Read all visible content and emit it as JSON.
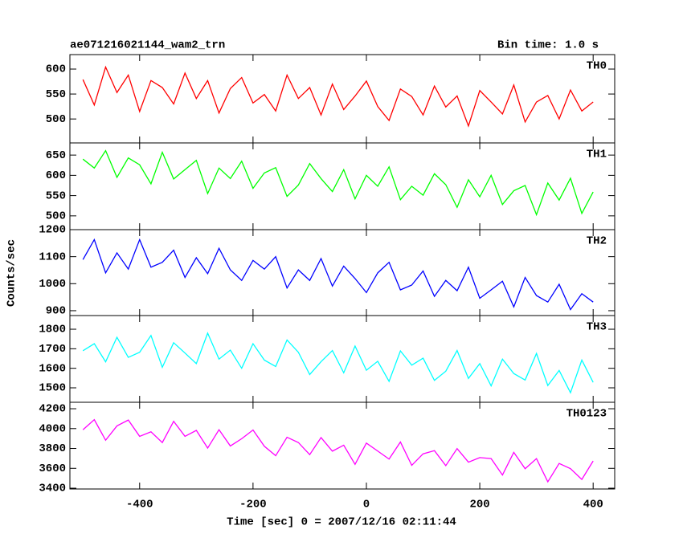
{
  "chart_data": {
    "type": "line",
    "title": "ae071216021144_wam2_trn",
    "subtitle": "Bin time: 1.0 s",
    "x_label": "Time [sec] 0 = 2007/12/16 02:11:44",
    "y_label": "Counts/sec",
    "xlim": [
      -523,
      438
    ],
    "xticks": [
      -400,
      -200,
      0,
      200,
      400
    ],
    "x": [
      -500,
      -480,
      -460,
      -440,
      -420,
      -400,
      -380,
      -360,
      -340,
      -320,
      -300,
      -280,
      -260,
      -240,
      -220,
      -200,
      -180,
      -160,
      -140,
      -120,
      -100,
      -80,
      -60,
      -40,
      -20,
      0,
      20,
      40,
      60,
      80,
      100,
      120,
      140,
      160,
      180,
      200,
      220,
      240,
      260,
      280,
      300,
      320,
      340,
      360,
      380,
      400
    ],
    "series": [
      {
        "name": "TH0",
        "color": "#ff0000",
        "ylim": [
          452,
          629
        ],
        "yticks": [
          500,
          550,
          600
        ],
        "values": [
          579,
          528,
          604,
          553,
          588,
          515,
          577,
          563,
          530,
          592,
          541,
          577,
          512,
          561,
          583,
          532,
          549,
          516,
          588,
          541,
          563,
          508,
          570,
          519,
          546,
          576,
          525,
          497,
          560,
          545,
          508,
          566,
          524,
          546,
          486,
          557,
          534,
          510,
          568,
          494,
          534,
          547,
          500,
          558,
          516,
          534
        ]
      },
      {
        "name": "TH1",
        "color": "#00ff00",
        "ylim": [
          466,
          680
        ],
        "yticks": [
          500,
          550,
          600,
          650
        ],
        "values": [
          640,
          618,
          661,
          595,
          643,
          626,
          579,
          657,
          591,
          614,
          637,
          555,
          618,
          592,
          635,
          568,
          606,
          619,
          548,
          576,
          629,
          592,
          560,
          614,
          542,
          600,
          573,
          621,
          540,
          573,
          551,
          604,
          577,
          521,
          589,
          547,
          600,
          528,
          562,
          575,
          503,
          581,
          539,
          593,
          506,
          559
        ]
      },
      {
        "name": "TH2",
        "color": "#0000ff",
        "ylim": [
          882,
          1200
        ],
        "yticks": [
          900,
          1000,
          1100,
          1200
        ],
        "values": [
          1089,
          1163,
          1040,
          1114,
          1054,
          1163,
          1061,
          1079,
          1124,
          1023,
          1096,
          1037,
          1131,
          1051,
          1012,
          1086,
          1054,
          1100,
          984,
          1051,
          1012,
          1093,
          991,
          1065,
          1019,
          967,
          1040,
          1079,
          977,
          995,
          1047,
          953,
          1012,
          974,
          1061,
          946,
          977,
          1009,
          914,
          1023,
          956,
          932,
          998,
          904,
          963,
          932
        ]
      },
      {
        "name": "TH3",
        "color": "#00ffff",
        "ylim": [
          1426,
          1870
        ],
        "yticks": [
          1500,
          1600,
          1700,
          1800
        ],
        "values": [
          1690,
          1726,
          1633,
          1759,
          1656,
          1682,
          1768,
          1605,
          1731,
          1678,
          1624,
          1780,
          1647,
          1693,
          1600,
          1726,
          1642,
          1609,
          1745,
          1682,
          1568,
          1634,
          1691,
          1577,
          1714,
          1590,
          1636,
          1533,
          1689,
          1616,
          1652,
          1538,
          1585,
          1691,
          1548,
          1624,
          1510,
          1647,
          1573,
          1540,
          1676,
          1512,
          1589,
          1475,
          1642,
          1528
        ]
      },
      {
        "name": "TH0123",
        "color": "#ff00ff",
        "ylim": [
          3392,
          4265
        ],
        "yticks": [
          3400,
          3600,
          3800,
          4000,
          4200
        ],
        "values": [
          3988,
          4090,
          3883,
          4027,
          4086,
          3922,
          3968,
          3859,
          4073,
          3922,
          3982,
          3804,
          3989,
          3825,
          3898,
          3986,
          3822,
          3727,
          3913,
          3860,
          3738,
          3910,
          3773,
          3833,
          3640,
          3854,
          3774,
          3693,
          3865,
          3630,
          3746,
          3778,
          3627,
          3799,
          3662,
          3708,
          3698,
          3533,
          3761,
          3596,
          3698,
          3464,
          3649,
          3597,
          3488,
          3674
        ]
      }
    ]
  }
}
